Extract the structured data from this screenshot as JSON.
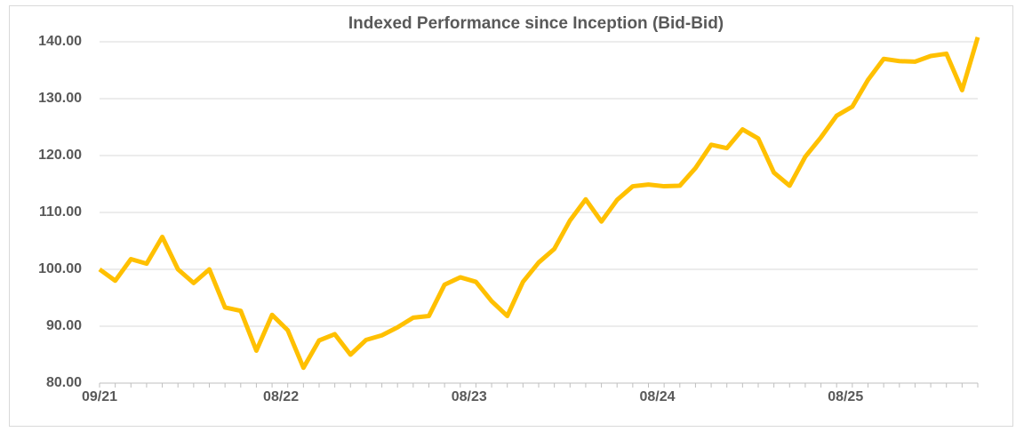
{
  "chart_data": {
    "type": "line",
    "title": "Indexed Performance since Inception (Bid-Bid)",
    "categories": [
      "09/21",
      null,
      null,
      null,
      null,
      null,
      null,
      null,
      null,
      null,
      null,
      "08/22",
      null,
      null,
      null,
      null,
      null,
      null,
      null,
      null,
      null,
      null,
      null,
      "08/23",
      null,
      null,
      null,
      null,
      null,
      null,
      null,
      null,
      null,
      null,
      null,
      "08/24",
      null,
      null,
      null,
      null,
      null,
      null,
      null,
      null,
      null,
      null,
      null,
      "08/25",
      null,
      null,
      null,
      null,
      null,
      null,
      null,
      null,
      null
    ],
    "series": [
      {
        "name": "Indexed Performance",
        "color": "#ffc000",
        "values": [
          100,
          98,
          101.8,
          101,
          105.7,
          100,
          97.6,
          100,
          93.3,
          92.7,
          85.7,
          92,
          89.3,
          82.7,
          87.5,
          88.6,
          85,
          87.6,
          88.4,
          89.8,
          91.5,
          91.8,
          97.3,
          98.6,
          97.8,
          94.4,
          91.8,
          97.8,
          101.2,
          103.6,
          108.6,
          112.3,
          108.4,
          112.2,
          114.6,
          114.9,
          114.6,
          114.7,
          117.8,
          121.9,
          121.3,
          124.6,
          123,
          117,
          114.7,
          119.8,
          123.2,
          127,
          128.6,
          133.3,
          137,
          136.6,
          136.5,
          137.5,
          137.9,
          131.5,
          140.8
        ]
      }
    ],
    "ylim": [
      80,
      140
    ],
    "yticks": [
      {
        "value": 80,
        "label": "80.00"
      },
      {
        "value": 90,
        "label": "90.00"
      },
      {
        "value": 100,
        "label": "100.00"
      },
      {
        "value": 110,
        "label": "110.00"
      },
      {
        "value": 120,
        "label": "120.00"
      },
      {
        "value": 130,
        "label": "130.00"
      },
      {
        "value": 140,
        "label": "140.00"
      }
    ],
    "grid": true
  }
}
